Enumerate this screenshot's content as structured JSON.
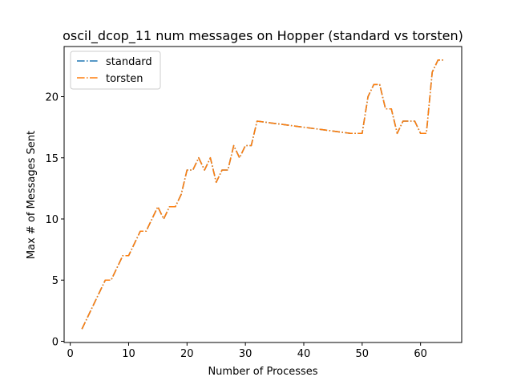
{
  "chart_data": {
    "type": "line",
    "title": "oscil_dcop_11 num messages on Hopper (standard vs torsten)",
    "xlabel": "Number of Processes",
    "ylabel": "Max # of Messages Sent",
    "xlim": [
      -1.05,
      67.05
    ],
    "ylim": [
      -0.1,
      24.1
    ],
    "xticks": [
      0,
      10,
      20,
      30,
      40,
      50,
      60
    ],
    "yticks": [
      0,
      5,
      10,
      15,
      20
    ],
    "legend_position": "upper-left",
    "grid": false,
    "x": [
      2,
      3,
      4,
      5,
      6,
      7,
      8,
      9,
      10,
      11,
      12,
      13,
      14,
      15,
      16,
      17,
      18,
      19,
      20,
      21,
      22,
      23,
      24,
      25,
      26,
      27,
      28,
      29,
      30,
      31,
      32,
      48,
      49,
      50,
      51,
      52,
      53,
      54,
      55,
      56,
      57,
      58,
      59,
      60,
      61,
      62,
      63,
      64
    ],
    "series": [
      {
        "name": "standard",
        "color": "#1f77b4",
        "values": [
          1,
          2,
          3,
          4,
          5,
          5,
          6,
          7,
          7,
          8,
          9,
          9,
          10,
          11,
          10,
          11,
          11,
          12,
          14,
          14,
          15,
          14,
          15,
          13,
          14,
          14,
          16,
          15,
          16,
          16,
          18,
          17,
          17,
          17,
          20,
          21,
          21,
          19,
          19,
          17,
          18,
          18,
          18,
          17,
          17,
          22,
          23,
          23
        ]
      },
      {
        "name": "torsten",
        "color": "#ff7f0e",
        "values": [
          1,
          2,
          3,
          4,
          5,
          5,
          6,
          7,
          7,
          8,
          9,
          9,
          10,
          11,
          10,
          11,
          11,
          12,
          14,
          14,
          15,
          14,
          15,
          13,
          14,
          14,
          16,
          15,
          16,
          16,
          18,
          17,
          17,
          17,
          20,
          21,
          21,
          19,
          19,
          17,
          18,
          18,
          18,
          17,
          17,
          22,
          23,
          23
        ]
      }
    ]
  }
}
